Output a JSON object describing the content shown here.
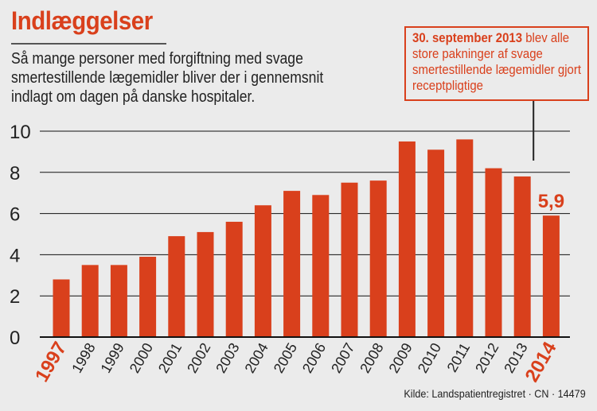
{
  "title": "Indlæggelser",
  "subtitle": "Så mange personer med forgiftning med svage smertestillende lægemidler bliver der i gennemsnit indlagt om dagen på danske hospitaler.",
  "annotation": {
    "date": "30. september 2013",
    "text": "blev alle store pakninger af svage smertestillende lægemidler gjort receptpligtige"
  },
  "source": "Kilde: Landspatientregistret · CN · 14479",
  "colors": {
    "bar": "#d9401c",
    "accent": "#d9401c",
    "background": "#ebebeb",
    "grid": "#111111"
  },
  "chart_data": {
    "type": "bar",
    "categories": [
      "1997",
      "1998",
      "1999",
      "2000",
      "2001",
      "2002",
      "2003",
      "2004",
      "2005",
      "2006",
      "2007",
      "2008",
      "2009",
      "2010",
      "2011",
      "2012",
      "2013",
      "2014"
    ],
    "values": [
      2.8,
      3.5,
      3.5,
      3.9,
      4.9,
      5.1,
      5.6,
      6.4,
      7.1,
      6.9,
      7.5,
      7.6,
      9.5,
      9.1,
      9.6,
      8.2,
      7.8,
      5.9
    ],
    "highlighted_categories": [
      "1997",
      "2014"
    ],
    "data_labels": [
      {
        "category": "2014",
        "label": "5,9"
      }
    ],
    "yticks": [
      0,
      2,
      4,
      6,
      8,
      10
    ],
    "ylim": [
      0,
      10
    ],
    "grid": true,
    "legend": "none"
  }
}
